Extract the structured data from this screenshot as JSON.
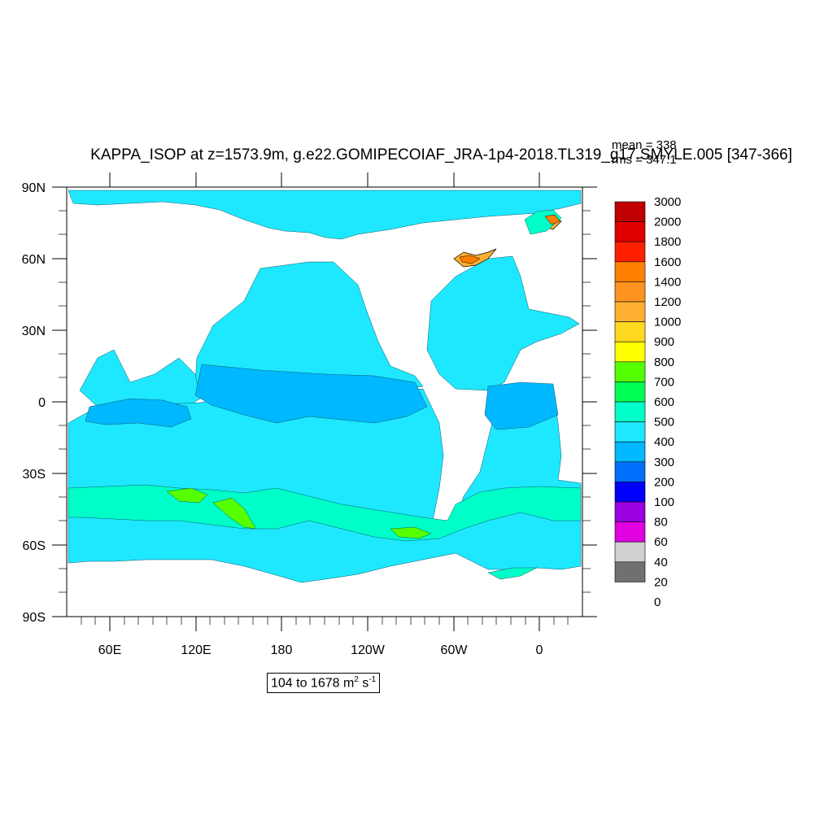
{
  "title": "KAPPA_ISOP at z=1573.9m, g.e22.GOMIPECOIAF_JRA-1p4-2018.TL319_g17.SMYLE.005 [347-366]",
  "stats": {
    "mean": "mean = 338",
    "rms": "rms = 347.1"
  },
  "axes": {
    "lat_labels": [
      "90N",
      "60N",
      "30N",
      "0",
      "30S",
      "60S",
      "90S"
    ],
    "lon_labels": [
      "60E",
      "120E",
      "180",
      "120W",
      "60W",
      "0"
    ]
  },
  "range": {
    "prefix": "104 to 1678 m",
    "exp1": "2",
    "mid": " s",
    "exp2": "-1"
  },
  "colorbar": {
    "labels": [
      "3000",
      "2000",
      "1800",
      "1600",
      "1400",
      "1200",
      "1000",
      "900",
      "800",
      "700",
      "600",
      "500",
      "400",
      "300",
      "200",
      "100",
      "80",
      "60",
      "40",
      "20",
      "0"
    ],
    "colors": [
      "#c00000",
      "#e00000",
      "#ff2000",
      "#ff7f00",
      "#ff9420",
      "#ffb030",
      "#ffd820",
      "#ffff00",
      "#55ff00",
      "#00ff55",
      "#00ffc8",
      "#1ee8ff",
      "#00b8ff",
      "#0070ff",
      "#0000ff",
      "#9a00e0",
      "#e000e0",
      "#d0d0d0",
      "#707070"
    ]
  },
  "colors": {
    "ocean_main": "#1ee8ff",
    "ocean_low": "#00b8ff",
    "ocean_mid": "#00ffc8",
    "ocean_high": "#55ff00",
    "land": "#ffffff"
  }
}
